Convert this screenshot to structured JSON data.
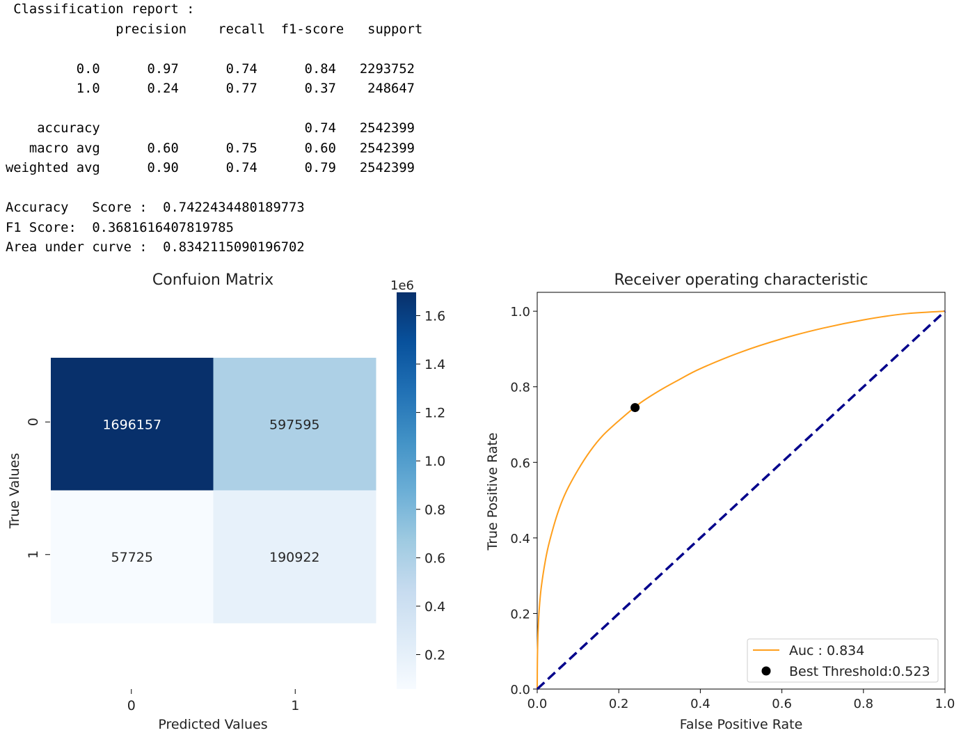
{
  "report": {
    "title": "Classification report :",
    "headers": [
      "precision",
      "recall",
      "f1-score",
      "support"
    ],
    "rows": [
      {
        "label": "0.0",
        "precision": "0.97",
        "recall": "0.74",
        "f1": "0.84",
        "support": "2293752"
      },
      {
        "label": "1.0",
        "precision": "0.24",
        "recall": "0.77",
        "f1": "0.37",
        "support": "248647"
      },
      {
        "label": "accuracy",
        "precision": "",
        "recall": "",
        "f1": "0.74",
        "support": "2542399"
      },
      {
        "label": "macro avg",
        "precision": "0.60",
        "recall": "0.75",
        "f1": "0.60",
        "support": "2542399"
      },
      {
        "label": "weighted avg",
        "precision": "0.90",
        "recall": "0.74",
        "f1": "0.79",
        "support": "2542399"
      }
    ],
    "metrics": [
      {
        "label": "Accuracy   Score :",
        "value": "0.7422434480189773"
      },
      {
        "label": "F1 Score:",
        "value": "0.3681616407819785"
      },
      {
        "label": "Area under curve :",
        "value": "0.8342115090196702"
      }
    ]
  },
  "chart_data": [
    {
      "type": "heatmap",
      "title": "Confuion Matrix",
      "xlabel": "Predicted Values",
      "ylabel": "True Values",
      "x_categories": [
        "0",
        "1"
      ],
      "y_categories": [
        "0",
        "1"
      ],
      "cells": [
        [
          1696157,
          597595
        ],
        [
          57725,
          190922
        ]
      ],
      "colormap": "Blues",
      "colorbar": {
        "ticks": [
          0.2,
          0.4,
          0.6,
          0.8,
          1.0,
          1.2,
          1.4,
          1.6
        ],
        "tick_labels": [
          "0.2",
          "0.4",
          "0.6",
          "0.8",
          "1.0",
          "1.2",
          "1.4",
          "1.6"
        ],
        "scale_label": "1e6",
        "range": [
          57725,
          1696157
        ]
      }
    },
    {
      "type": "line",
      "title": "Receiver operating characteristic",
      "xlabel": "False Positive Rate",
      "ylabel": "True Positive Rate",
      "xlim": [
        0,
        1
      ],
      "ylim": [
        0,
        1.05
      ],
      "xticks": [
        0.0,
        0.2,
        0.4,
        0.6,
        0.8,
        1.0
      ],
      "xtick_labels": [
        "0.0",
        "0.2",
        "0.4",
        "0.6",
        "0.8",
        "1.0"
      ],
      "yticks": [
        0.0,
        0.2,
        0.4,
        0.6,
        0.8,
        1.0
      ],
      "ytick_labels": [
        "0.0",
        "0.2",
        "0.4",
        "0.6",
        "0.8",
        "1.0"
      ],
      "series": [
        {
          "name": "Auc : 0.834",
          "color": "#ff9f1c",
          "style": "solid",
          "x": [
            0,
            0.0005,
            0.002,
            0.005,
            0.01,
            0.02,
            0.03,
            0.05,
            0.07,
            0.1,
            0.13,
            0.16,
            0.2,
            0.25,
            0.3,
            0.35,
            0.4,
            0.5,
            0.6,
            0.7,
            0.8,
            0.9,
            1.0
          ],
          "y": [
            0,
            0.08,
            0.15,
            0.212,
            0.27,
            0.34,
            0.39,
            0.465,
            0.52,
            0.58,
            0.63,
            0.67,
            0.71,
            0.755,
            0.79,
            0.82,
            0.848,
            0.892,
            0.927,
            0.955,
            0.977,
            0.993,
            1.0
          ]
        },
        {
          "name": "",
          "color": "#00008b",
          "style": "dashed",
          "x": [
            0,
            1
          ],
          "y": [
            0,
            1
          ]
        }
      ],
      "points": [
        {
          "name": "Best Threshold:0.523",
          "x": 0.24,
          "y": 0.745,
          "color": "#000000"
        }
      ],
      "legend_position": "lower-right"
    }
  ]
}
